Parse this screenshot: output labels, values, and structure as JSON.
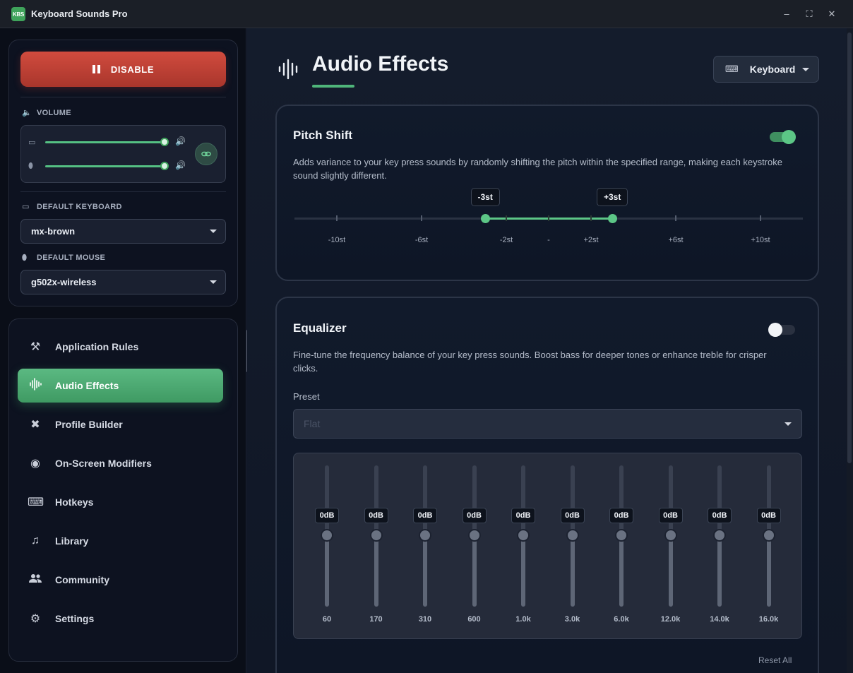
{
  "app": {
    "logo_text": "KBS",
    "title": "Keyboard Sounds Pro"
  },
  "window_controls": {
    "minimize": "–",
    "maximize": "⛶",
    "close": "✕"
  },
  "sidebar": {
    "disable_label": "DISABLE",
    "volume": {
      "label": "VOLUME",
      "keyboard_volume": 1.0,
      "mouse_volume": 1.0
    },
    "default_keyboard": {
      "label": "DEFAULT KEYBOARD",
      "value": "mx-brown"
    },
    "default_mouse": {
      "label": "DEFAULT MOUSE",
      "value": "g502x-wireless"
    },
    "nav": [
      {
        "label": "Application Rules",
        "icon": "gavel-icon",
        "glyph": "⚒"
      },
      {
        "label": "Audio Effects",
        "icon": "waveform-icon",
        "glyph": "⦀",
        "active": true
      },
      {
        "label": "Profile Builder",
        "icon": "tools-icon",
        "glyph": "✖"
      },
      {
        "label": "On-Screen Modifiers",
        "icon": "eye-icon",
        "glyph": "◉"
      },
      {
        "label": "Hotkeys",
        "icon": "keyboard-icon",
        "glyph": "⌨"
      },
      {
        "label": "Library",
        "icon": "library-music-icon",
        "glyph": "♫"
      },
      {
        "label": "Community",
        "icon": "people-icon",
        "glyph": "👥"
      },
      {
        "label": "Settings",
        "icon": "gear-icon",
        "glyph": "⚙"
      }
    ]
  },
  "main": {
    "page_title": "Audio Effects",
    "device_select": "Keyboard",
    "pitch_shift": {
      "title": "Pitch Shift",
      "enabled": true,
      "description": "Adds variance to your key press sounds by randomly shifting the pitch within the specified range, making each keystroke sound slightly different.",
      "range_min_label": "-3st",
      "range_max_label": "+3st",
      "range_min": -3,
      "range_max": 3,
      "scale_min": -12,
      "scale_max": 12,
      "tick_labels": [
        "-10st",
        "-6st",
        "-2st",
        "-",
        "+2st",
        "+6st",
        "+10st"
      ],
      "tick_values": [
        -10,
        -6,
        -2,
        0,
        2,
        6,
        10
      ]
    },
    "equalizer": {
      "title": "Equalizer",
      "enabled": false,
      "description": "Fine-tune the frequency balance of your key press sounds. Boost bass for deeper tones or enhance treble for crisper clicks.",
      "preset_label": "Preset",
      "preset_value": "Flat",
      "bands": [
        {
          "freq": "60",
          "gain": "0dB"
        },
        {
          "freq": "170",
          "gain": "0dB"
        },
        {
          "freq": "310",
          "gain": "0dB"
        },
        {
          "freq": "600",
          "gain": "0dB"
        },
        {
          "freq": "1.0k",
          "gain": "0dB"
        },
        {
          "freq": "3.0k",
          "gain": "0dB"
        },
        {
          "freq": "6.0k",
          "gain": "0dB"
        },
        {
          "freq": "12.0k",
          "gain": "0dB"
        },
        {
          "freq": "14.0k",
          "gain": "0dB"
        },
        {
          "freq": "16.0k",
          "gain": "0dB"
        }
      ],
      "reset_label": "Reset All"
    }
  }
}
